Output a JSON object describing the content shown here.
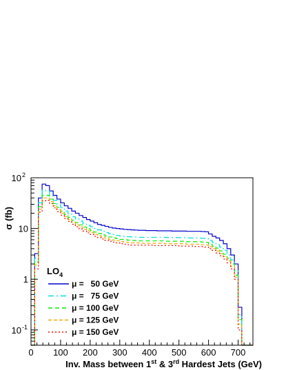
{
  "chart_data": {
    "type": "histogram",
    "xlabel": "Inv. Mass between 1st & 3rd Hardest Jets (GeV)",
    "xlabel_parts": [
      "Inv. Mass between 1",
      "st",
      " & 3",
      "rd",
      " Hardest Jets (GeV)"
    ],
    "ylabel": "σ (fb)",
    "xlim": [
      0,
      750
    ],
    "ylim": [
      0.05,
      100
    ],
    "yscale": "log",
    "x_ticks": [
      0,
      100,
      200,
      300,
      400,
      500,
      600,
      700
    ],
    "y_ticks": [
      {
        "value": 0.1,
        "base": "10",
        "exp": "-1"
      },
      {
        "value": 1,
        "base": "1",
        "exp": ""
      },
      {
        "value": 10,
        "base": "10",
        "exp": ""
      },
      {
        "value": 100,
        "base": "10",
        "exp": "2"
      }
    ],
    "legend_title": "LO",
    "legend_title_sub": "4",
    "legend_position": "bottom-left",
    "bin_edges": [
      0,
      12.5,
      25,
      37.5,
      50,
      62.5,
      75,
      87.5,
      100,
      112.5,
      125,
      137.5,
      150,
      162.5,
      175,
      187.5,
      200,
      212.5,
      225,
      237.5,
      250,
      262.5,
      275,
      287.5,
      300,
      312.5,
      325,
      337.5,
      350,
      362.5,
      375,
      387.5,
      400,
      412.5,
      425,
      437.5,
      450,
      462.5,
      475,
      487.5,
      500,
      512.5,
      525,
      537.5,
      550,
      562.5,
      575,
      587.5,
      600,
      612.5,
      625,
      637.5,
      650,
      662.5,
      675,
      687.5,
      700,
      712.5,
      725,
      737.5,
      750
    ],
    "series": [
      {
        "name": "μ =   50 GeV",
        "color": "#0000cc",
        "dash": "",
        "values": [
          0,
          3.2,
          40,
          75,
          70,
          55,
          45,
          38,
          32,
          28,
          25,
          22,
          20,
          18,
          16.5,
          15,
          14,
          13,
          12,
          11.5,
          11,
          10.5,
          10.2,
          10,
          9.8,
          9.6,
          9.5,
          9.4,
          9.3,
          9.2,
          9.2,
          9.1,
          9.1,
          9.1,
          9.0,
          9.0,
          9.0,
          9.0,
          8.9,
          8.9,
          8.9,
          8.9,
          8.8,
          8.8,
          8.8,
          8.8,
          8.7,
          8.6,
          7.8,
          7.0,
          6.5,
          5.8,
          5.0,
          4.0,
          3.0,
          2.0,
          0.28,
          0,
          0,
          0
        ]
      },
      {
        "name": "μ =   75 GeV",
        "color": "#00dddd",
        "dash": "8,4,2,4",
        "values": [
          0,
          2.6,
          32,
          57,
          55,
          44,
          36,
          30,
          26,
          22,
          19.5,
          17,
          15.5,
          14,
          12.6,
          11.6,
          10.8,
          10.0,
          9.4,
          8.8,
          8.3,
          7.9,
          7.6,
          7.3,
          7.1,
          7.0,
          6.9,
          6.8,
          6.8,
          6.7,
          6.7,
          6.7,
          6.7,
          6.7,
          6.7,
          6.7,
          6.7,
          6.6,
          6.6,
          6.6,
          6.6,
          6.6,
          6.5,
          6.5,
          6.5,
          6.5,
          6.4,
          6.3,
          5.8,
          5.3,
          4.8,
          4.3,
          3.7,
          3.0,
          2.4,
          1.5,
          0.2,
          0,
          0,
          0
        ]
      },
      {
        "name": "μ = 100 GeV",
        "color": "#00ee00",
        "dash": "6,4",
        "values": [
          0,
          2.2,
          27,
          45,
          45,
          38,
          31,
          26,
          22,
          19,
          16.5,
          14.5,
          13,
          11.8,
          10.7,
          9.9,
          9.2,
          8.5,
          8.0,
          7.5,
          7.1,
          6.8,
          6.5,
          6.3,
          6.1,
          6.0,
          5.9,
          5.8,
          5.8,
          5.7,
          5.7,
          5.7,
          5.7,
          5.7,
          5.7,
          5.7,
          5.6,
          5.6,
          5.6,
          5.6,
          5.6,
          5.6,
          5.5,
          5.5,
          5.5,
          5.5,
          5.4,
          5.3,
          4.9,
          4.5,
          4.1,
          3.6,
          3.1,
          2.6,
          2.0,
          1.2,
          0.16,
          0,
          0,
          0
        ]
      },
      {
        "name": "μ = 125 GeV",
        "color": "#eeaa00",
        "dash": "5,3",
        "values": [
          0,
          1.9,
          24,
          40,
          40,
          34,
          28,
          23.5,
          20,
          17.2,
          15,
          13.2,
          11.8,
          10.7,
          9.7,
          9.0,
          8.3,
          7.7,
          7.2,
          6.8,
          6.4,
          6.1,
          5.9,
          5.7,
          5.5,
          5.4,
          5.3,
          5.2,
          5.2,
          5.2,
          5.1,
          5.1,
          5.1,
          5.1,
          5.1,
          5.1,
          5.0,
          5.0,
          5.0,
          5.0,
          5.0,
          5.0,
          4.9,
          4.9,
          4.9,
          4.9,
          4.8,
          4.7,
          4.4,
          4.0,
          3.6,
          3.2,
          2.8,
          2.3,
          1.8,
          1.1,
          0.13,
          0,
          0,
          0
        ]
      },
      {
        "name": "μ = 150 GeV",
        "color": "#ee0000",
        "dash": "2,3",
        "values": [
          0,
          1.6,
          21,
          35,
          36,
          31,
          25.5,
          21.5,
          18.3,
          15.8,
          13.8,
          12.1,
          10.8,
          9.8,
          8.9,
          8.2,
          7.6,
          7.0,
          6.6,
          6.2,
          5.8,
          5.6,
          5.4,
          5.2,
          5.0,
          4.9,
          4.8,
          4.7,
          4.7,
          4.7,
          4.7,
          4.7,
          4.7,
          4.6,
          4.6,
          4.6,
          4.6,
          4.6,
          4.6,
          4.6,
          4.5,
          4.5,
          4.5,
          4.5,
          4.4,
          4.4,
          4.4,
          4.3,
          4.0,
          3.7,
          3.3,
          2.9,
          2.5,
          2.1,
          1.6,
          1.0,
          0.1,
          0,
          0,
          0
        ]
      }
    ]
  }
}
